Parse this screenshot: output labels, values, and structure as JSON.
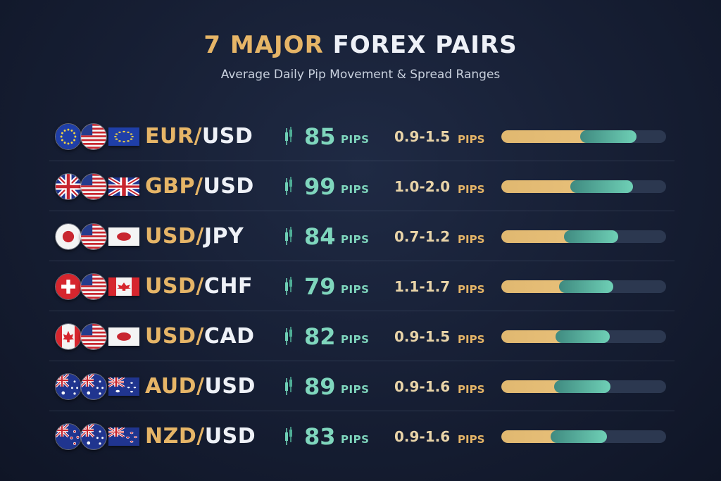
{
  "header": {
    "title_highlight": "7 MAJOR",
    "title_rest": "FOREX PAIRS",
    "subtitle": "Average Daily Pip Movement & Spread Ranges"
  },
  "units": {
    "pips": "PIPS"
  },
  "colors": {
    "gold": "#e6b567",
    "teal": "#7fd6bd",
    "background": "#161e33"
  },
  "pairs": [
    {
      "base": "EUR/",
      "quote": "USD",
      "pips": "85",
      "spread": "0.9-1.5",
      "flags": [
        "eu-flag-icon",
        "us-flag-icon",
        "eu-flag-icon"
      ],
      "bar_gold": 0.62,
      "bar_teal": [
        0.48,
        0.82
      ]
    },
    {
      "base": "GBP/",
      "quote": "USD",
      "pips": "99",
      "spread": "1.0-2.0",
      "flags": [
        "uk-flag-icon",
        "us-flag-icon",
        "uk-flag-icon"
      ],
      "bar_gold": 0.55,
      "bar_teal": [
        0.42,
        0.8
      ]
    },
    {
      "base": "USD/",
      "quote": "JPY",
      "pips": "84",
      "spread": "0.7-1.2",
      "flags": [
        "japan-flag-icon",
        "us-flag-icon",
        "japan-flag-icon"
      ],
      "bar_gold": 0.5,
      "bar_teal": [
        0.38,
        0.71
      ]
    },
    {
      "base": "USD/",
      "quote": "CHF",
      "pips": "79",
      "spread": "1.1-1.7",
      "flags": [
        "swiss-flag-icon",
        "us-flag-icon",
        "canada-flag-icon"
      ],
      "bar_gold": 0.45,
      "bar_teal": [
        0.35,
        0.68
      ]
    },
    {
      "base": "USD/",
      "quote": "CAD",
      "pips": "82",
      "spread": "0.9-1.5",
      "flags": [
        "canada-flag-icon",
        "us-flag-icon",
        "japan-flag-icon"
      ],
      "bar_gold": 0.48,
      "bar_teal": [
        0.33,
        0.66
      ]
    },
    {
      "base": "AUD/",
      "quote": "USD",
      "pips": "89",
      "spread": "0.9-1.6",
      "flags": [
        "australia-flag-icon",
        "australia-flag-icon",
        "australia-flag-icon"
      ],
      "bar_gold": 0.46,
      "bar_teal": [
        0.32,
        0.66
      ]
    },
    {
      "base": "NZD/",
      "quote": "USD",
      "pips": "83",
      "spread": "0.9-1.6",
      "flags": [
        "new-zealand-flag-icon",
        "australia-flag-icon",
        "new-zealand-flag-icon"
      ],
      "bar_gold": 0.44,
      "bar_teal": [
        0.3,
        0.64
      ]
    }
  ]
}
